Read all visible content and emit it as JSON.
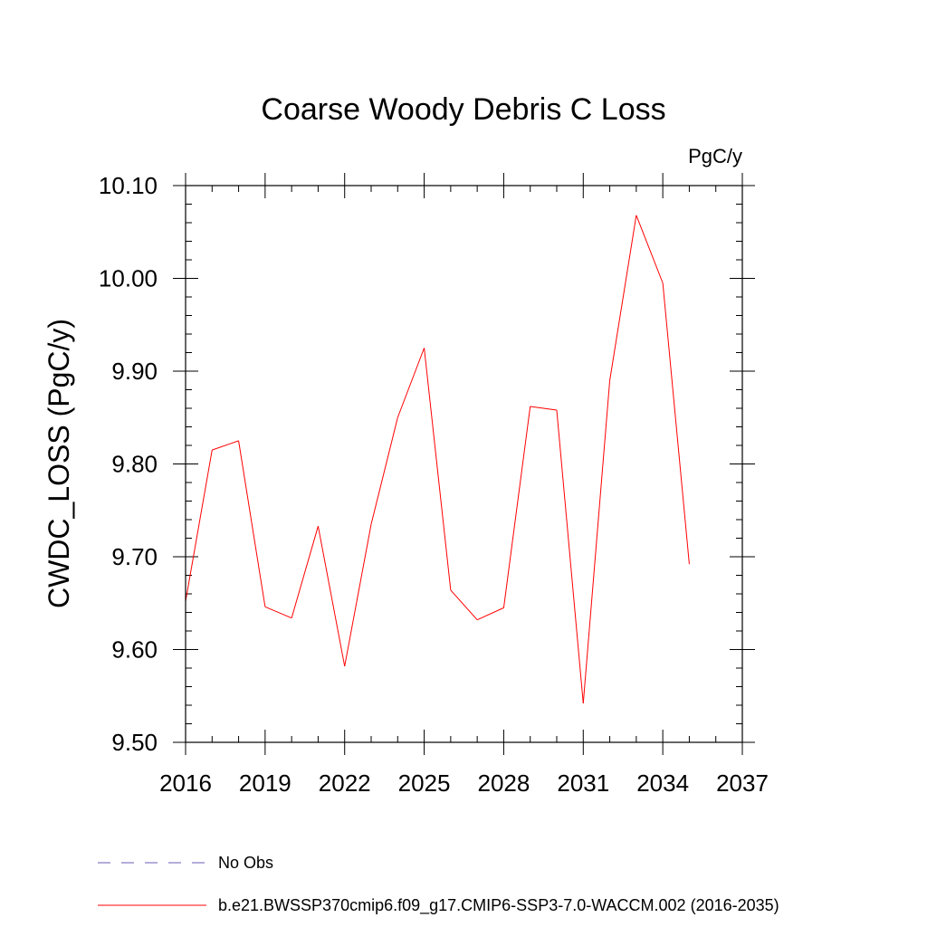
{
  "chart_data": {
    "type": "line",
    "title": "Coarse Woody Debris C Loss",
    "units_label": "PgC/y",
    "xlabel": "",
    "ylabel": "CWDC_LOSS  (PgC/y)",
    "xlim": [
      2016,
      2037
    ],
    "ylim": [
      9.5,
      10.1
    ],
    "x_ticks": [
      2016,
      2019,
      2022,
      2025,
      2028,
      2031,
      2034,
      2037
    ],
    "x_tick_labels": [
      "2016",
      "2019",
      "2022",
      "2025",
      "2028",
      "2031",
      "2034",
      "2037"
    ],
    "y_ticks": [
      9.5,
      9.6,
      9.7,
      9.8,
      9.9,
      10.0,
      10.1
    ],
    "y_tick_labels": [
      "9.50",
      "9.60",
      "9.70",
      "9.80",
      "9.90",
      "10.00",
      "10.10"
    ],
    "grid": false,
    "legend_position": "bottom-left",
    "series": [
      {
        "name": "b.e21.BWSSP370cmip6.f09_g17.CMIP6-SSP3-7.0-WACCM.002 (2016-2035)",
        "color": "#ff0000",
        "style": "solid",
        "x": [
          2016,
          2017,
          2018,
          2019,
          2020,
          2021,
          2022,
          2023,
          2024,
          2025,
          2026,
          2027,
          2028,
          2029,
          2030,
          2031,
          2032,
          2033,
          2034,
          2035
        ],
        "y": [
          9.652,
          9.815,
          9.825,
          9.646,
          9.634,
          9.733,
          9.582,
          9.735,
          9.85,
          9.925,
          9.664,
          9.632,
          9.645,
          9.862,
          9.858,
          9.542,
          9.89,
          10.068,
          9.995,
          9.692
        ]
      },
      {
        "name": "No Obs",
        "color": "#6b5bb5",
        "style": "dashed",
        "x": [],
        "y": []
      }
    ]
  }
}
